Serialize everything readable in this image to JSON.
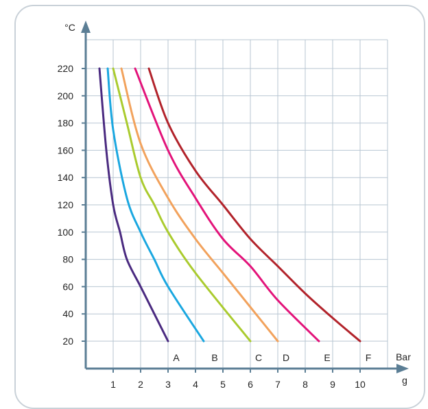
{
  "chart_data": {
    "type": "line",
    "title": "",
    "xlabel": "Bar g",
    "ylabel": "°C",
    "xlim": [
      0,
      11
    ],
    "ylim": [
      0,
      240
    ],
    "grid": true,
    "x_ticks": [
      1,
      2,
      3,
      4,
      5,
      6,
      7,
      8,
      9,
      10
    ],
    "y_ticks": [
      20,
      40,
      60,
      80,
      100,
      120,
      140,
      160,
      180,
      200,
      220
    ],
    "colors": {
      "axis": "#5b7e95",
      "grid": "#b7c6d2"
    },
    "series": [
      {
        "name": "A",
        "color": "#4a2a80",
        "label_x": 3.3,
        "points": [
          [
            0.5,
            220
          ],
          [
            0.75,
            160
          ],
          [
            1.0,
            120
          ],
          [
            1.25,
            100
          ],
          [
            1.5,
            80
          ],
          [
            2.0,
            60
          ],
          [
            2.5,
            40
          ],
          [
            3.0,
            20
          ]
        ]
      },
      {
        "name": "B",
        "color": "#1aa7e0",
        "label_x": 4.7,
        "points": [
          [
            0.8,
            220
          ],
          [
            1.0,
            175
          ],
          [
            1.5,
            125
          ],
          [
            2.0,
            100
          ],
          [
            2.5,
            80
          ],
          [
            3.0,
            60
          ],
          [
            4.3,
            20
          ]
        ]
      },
      {
        "name": "C",
        "color": "#aacb2e",
        "label_x": 6.3,
        "points": [
          [
            1.0,
            220
          ],
          [
            1.5,
            180
          ],
          [
            2.0,
            140
          ],
          [
            2.5,
            120
          ],
          [
            3.0,
            100
          ],
          [
            4.0,
            70
          ],
          [
            6.0,
            20
          ]
        ]
      },
      {
        "name": "D",
        "color": "#f2a25c",
        "label_x": 7.3,
        "points": [
          [
            1.3,
            220
          ],
          [
            2.0,
            165
          ],
          [
            3.0,
            125
          ],
          [
            4.0,
            95
          ],
          [
            5.0,
            70
          ],
          [
            6.0,
            45
          ],
          [
            7.0,
            20
          ]
        ]
      },
      {
        "name": "E",
        "color": "#e3137a",
        "label_x": 8.8,
        "points": [
          [
            1.8,
            220
          ],
          [
            3.0,
            160
          ],
          [
            4.0,
            125
          ],
          [
            5.0,
            95
          ],
          [
            6.0,
            75
          ],
          [
            7.0,
            50
          ],
          [
            8.5,
            20
          ]
        ]
      },
      {
        "name": "F",
        "color": "#b2232b",
        "label_x": 10.3,
        "points": [
          [
            2.3,
            220
          ],
          [
            3.0,
            180
          ],
          [
            4.0,
            145
          ],
          [
            5.0,
            120
          ],
          [
            6.0,
            95
          ],
          [
            7.0,
            75
          ],
          [
            8.0,
            55
          ],
          [
            9.0,
            37
          ],
          [
            10.0,
            20
          ]
        ]
      }
    ]
  }
}
